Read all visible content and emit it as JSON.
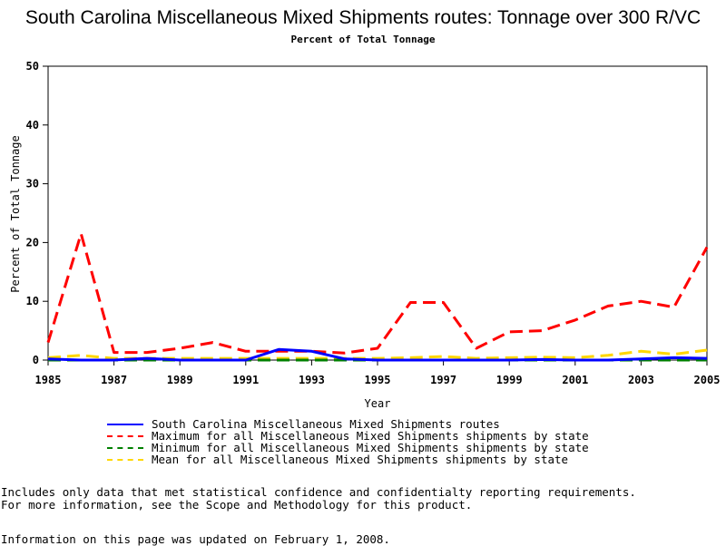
{
  "chart_data": {
    "type": "line",
    "title": "South Carolina Miscellaneous Mixed Shipments routes: Tonnage over 300 R/VC",
    "subtitle": "Percent of Total Tonnage",
    "xlabel": "Year",
    "ylabel": "Percent of Total Tonnage",
    "xlim": [
      1985,
      2005
    ],
    "ylim": [
      0,
      50
    ],
    "x_ticks": [
      1985,
      1987,
      1989,
      1991,
      1993,
      1995,
      1997,
      1999,
      2001,
      2003,
      2005
    ],
    "y_ticks": [
      0,
      10,
      20,
      30,
      40,
      50
    ],
    "x": [
      1985,
      1986,
      1987,
      1988,
      1989,
      1990,
      1991,
      1992,
      1993,
      1994,
      1995,
      1996,
      1997,
      1998,
      1999,
      2000,
      2001,
      2002,
      2003,
      2004,
      2005
    ],
    "series": [
      {
        "name": "South Carolina Miscellaneous Mixed Shipments routes",
        "color": "#0000ff",
        "dashed": false,
        "values": [
          0.2,
          0,
          0,
          0.3,
          0,
          0,
          0,
          1.8,
          1.5,
          0.2,
          0,
          0,
          0,
          0,
          0,
          0.1,
          0,
          0,
          0.2,
          0.4,
          0.3
        ]
      },
      {
        "name": "Maximum for all Miscellaneous Mixed Shipments shipments by state",
        "color": "#ff0000",
        "dashed": true,
        "values": [
          3,
          21.5,
          1.3,
          1.3,
          2,
          3,
          1.5,
          1.5,
          1.5,
          1.2,
          2,
          9.8,
          9.8,
          2,
          4.8,
          5,
          6.8,
          9.2,
          10,
          9,
          19.2
        ]
      },
      {
        "name": "Minimum for all Miscellaneous Mixed Shipments shipments by state",
        "color": "#008000",
        "dashed": true,
        "values": [
          0,
          0,
          0,
          0,
          0,
          0,
          0,
          0,
          0,
          0,
          0,
          0,
          0,
          0,
          0,
          0,
          0,
          0,
          0,
          0,
          0
        ]
      },
      {
        "name": "Mean for all Miscellaneous Mixed Shipments shipments by state",
        "color": "#ffd700",
        "dashed": true,
        "values": [
          0.4,
          0.8,
          0.3,
          0.3,
          0.3,
          0.3,
          0.3,
          0.3,
          0.3,
          0.3,
          0.3,
          0.4,
          0.6,
          0.3,
          0.4,
          0.5,
          0.4,
          0.8,
          1.5,
          1,
          1.7
        ]
      }
    ]
  },
  "notes": {
    "line1": "Includes only data that met statistical confidence and confidentialty reporting requirements.",
    "line2": "For more information, see the Scope and Methodology for this product.",
    "updated": "Information on this page was updated on February 1, 2008."
  }
}
